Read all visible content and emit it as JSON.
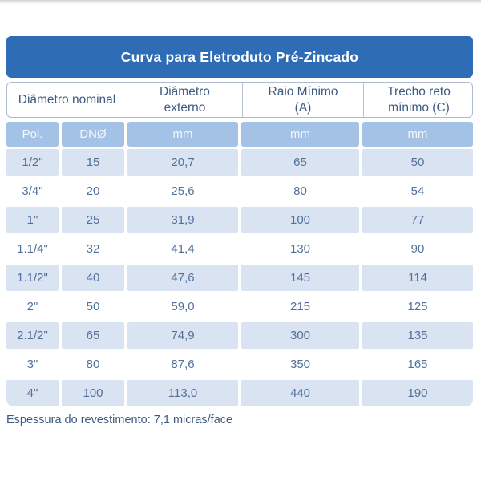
{
  "title": "Curva para Eletroduto Pré-Zincado",
  "table": {
    "header": {
      "diametro_nominal": "Diâmetro nominal",
      "diametro_externo": "Diâmetro\nexterno",
      "raio_minimo": "Raio Mínimo\n(A)",
      "trecho_reto": "Trecho reto\nmínimo (C)"
    },
    "subheader": [
      "Pol.",
      "DNØ",
      "mm",
      "mm",
      "mm"
    ]
  },
  "footer": "Espessura do revestimento: 7,1 micras/face",
  "colors": {
    "title_bar_bg": "#2e6cb5",
    "title_text": "#ffffff",
    "header_text": "#3d5b80",
    "header_border": "#aebbce",
    "subheader_bg": "#a4c2e6",
    "subheader_text": "#f3f7fc",
    "alt_row_bg": "#d9e3f2",
    "data_text": "#51719c",
    "footer_text": "#3d5b80"
  },
  "chart_data": {
    "type": "table",
    "title": "Curva para Eletroduto Pré-Zincado",
    "columns": [
      "Diâmetro nominal — Pol.",
      "Diâmetro nominal — DNØ",
      "Diâmetro externo (mm)",
      "Raio Mínimo (A) (mm)",
      "Trecho reto mínimo (C) (mm)"
    ],
    "rows": [
      [
        "1/2\"",
        "15",
        "20,7",
        "65",
        "50"
      ],
      [
        "3/4\"",
        "20",
        "25,6",
        "80",
        "54"
      ],
      [
        "1\"",
        "25",
        "31,9",
        "100",
        "77"
      ],
      [
        "1.1/4\"",
        "32",
        "41,4",
        "130",
        "90"
      ],
      [
        "1.1/2\"",
        "40",
        "47,6",
        "145",
        "114"
      ],
      [
        "2\"",
        "50",
        "59,0",
        "215",
        "125"
      ],
      [
        "2.1/2\"",
        "65",
        "74,9",
        "300",
        "135"
      ],
      [
        "3\"",
        "80",
        "87,6",
        "350",
        "165"
      ],
      [
        "4\"",
        "100",
        "113,0",
        "440",
        "190"
      ]
    ],
    "footnote": "Espessura do revestimento: 7,1 micras/face",
    "layout": {
      "alternating_row_shading": true,
      "striped_from_first_row": true
    }
  }
}
